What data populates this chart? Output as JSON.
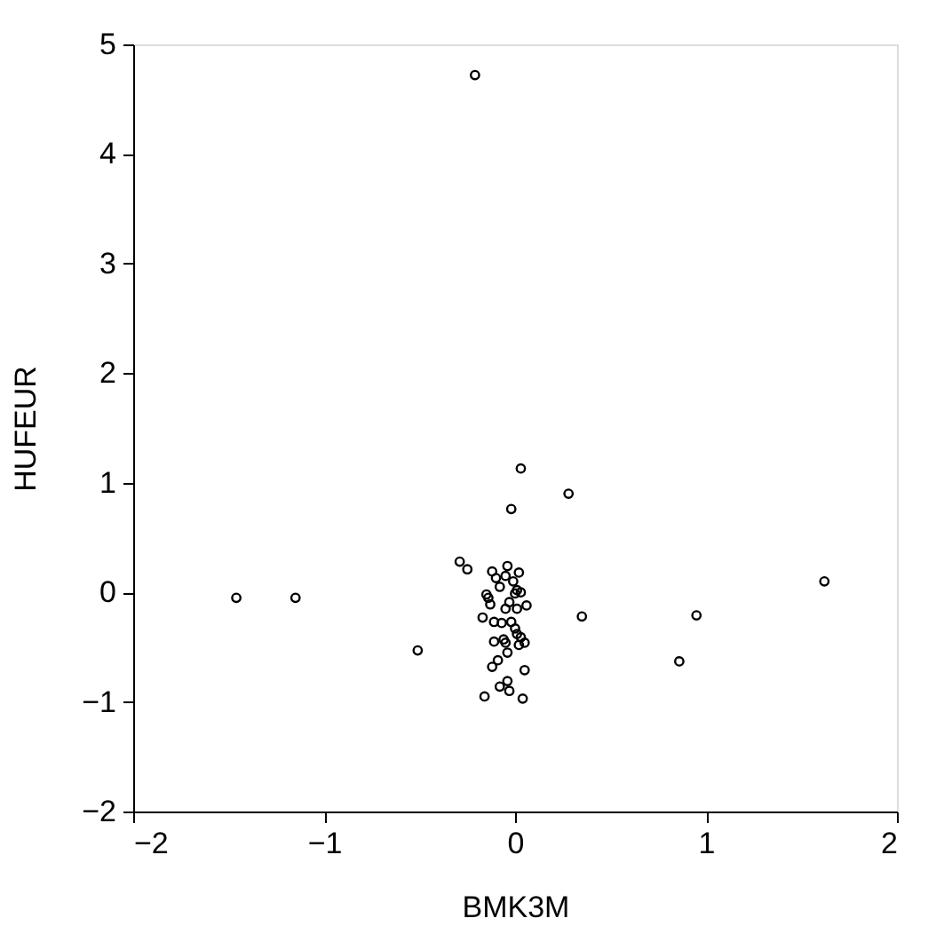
{
  "chart_data": {
    "type": "scatter",
    "xlabel": "BMK3M",
    "ylabel": "HUFEUR",
    "xlim": [
      -2,
      2
    ],
    "xticks": [
      -2,
      -1,
      0,
      1,
      2
    ],
    "ylim": [
      -2,
      5
    ],
    "yticks": [
      -2,
      -1,
      0,
      1,
      2,
      3,
      4,
      5
    ],
    "grid": false,
    "legend": false,
    "marker": "circle",
    "series": [
      {
        "color": "#000000",
        "x": [
          -0.21,
          0.03,
          0.28,
          -0.02,
          -0.29,
          -0.25,
          -1.46,
          -1.15,
          1.62,
          0.35,
          0.95,
          0.86,
          -0.51,
          -0.04,
          -0.12,
          0.02,
          -0.1,
          -0.05,
          -0.01,
          -0.08,
          0.01,
          0.0,
          0.03,
          -0.15,
          -0.14,
          -0.13,
          0.06,
          -0.03,
          -0.05,
          0.01,
          -0.17,
          -0.11,
          -0.07,
          -0.02,
          0.0,
          0.01,
          0.03,
          -0.11,
          -0.06,
          -0.05,
          0.05,
          0.02,
          -0.04,
          -0.09,
          -0.12,
          0.05,
          -0.04,
          -0.08,
          -0.03,
          -0.16,
          0.04
        ],
        "values": [
          4.72,
          1.13,
          0.9,
          0.76,
          0.28,
          0.21,
          -0.05,
          -0.05,
          0.1,
          -0.22,
          -0.21,
          -0.63,
          -0.53,
          0.24,
          0.19,
          0.18,
          0.13,
          0.15,
          0.1,
          0.05,
          0.02,
          -0.01,
          0.0,
          -0.02,
          -0.05,
          -0.11,
          -0.12,
          -0.09,
          -0.15,
          -0.15,
          -0.23,
          -0.27,
          -0.28,
          -0.27,
          -0.33,
          -0.38,
          -0.41,
          -0.45,
          -0.43,
          -0.46,
          -0.46,
          -0.48,
          -0.55,
          -0.62,
          -0.68,
          -0.71,
          -0.81,
          -0.86,
          -0.9,
          -0.95,
          -0.97
        ]
      }
    ]
  }
}
